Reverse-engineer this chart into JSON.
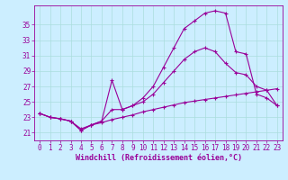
{
  "xlabel": "Windchill (Refroidissement éolien,°C)",
  "bg_color": "#cceeff",
  "line_color": "#990099",
  "grid_color": "#aadddd",
  "yticks": [
    21,
    23,
    25,
    27,
    29,
    31,
    33,
    35
  ],
  "xticks": [
    0,
    1,
    2,
    3,
    4,
    5,
    6,
    7,
    8,
    9,
    10,
    11,
    12,
    13,
    14,
    15,
    16,
    17,
    18,
    19,
    20,
    21,
    22,
    23
  ],
  "ylim": [
    20.0,
    37.5
  ],
  "xlim": [
    -0.5,
    23.5
  ],
  "line1_x": [
    0,
    1,
    2,
    3,
    4,
    5,
    6,
    7,
    8,
    9,
    10,
    11,
    12,
    13,
    14,
    15,
    16,
    17,
    18,
    19,
    20,
    21,
    22,
    23
  ],
  "line1_y": [
    23.5,
    23.0,
    22.8,
    22.5,
    21.5,
    22.0,
    22.3,
    22.7,
    23.0,
    23.3,
    23.7,
    24.0,
    24.3,
    24.6,
    24.9,
    25.1,
    25.3,
    25.5,
    25.7,
    25.9,
    26.1,
    26.3,
    26.5,
    26.7
  ],
  "line2_x": [
    0,
    1,
    2,
    3,
    4,
    5,
    6,
    7,
    8,
    9,
    10,
    11,
    12,
    13,
    14,
    15,
    16,
    17,
    18,
    19,
    20,
    21,
    22,
    23
  ],
  "line2_y": [
    23.5,
    23.0,
    22.8,
    22.5,
    21.3,
    22.0,
    22.5,
    27.8,
    24.0,
    24.5,
    25.5,
    27.0,
    29.5,
    32.0,
    34.5,
    35.5,
    36.5,
    36.8,
    36.5,
    31.5,
    31.2,
    26.0,
    25.5,
    24.5
  ],
  "line3_x": [
    0,
    1,
    2,
    3,
    4,
    5,
    6,
    7,
    8,
    9,
    10,
    11,
    12,
    13,
    14,
    15,
    16,
    17,
    18,
    19,
    20,
    21,
    22,
    23
  ],
  "line3_y": [
    23.5,
    23.0,
    22.8,
    22.5,
    21.3,
    22.0,
    22.5,
    24.0,
    24.0,
    24.5,
    25.0,
    26.0,
    27.5,
    29.0,
    30.5,
    31.5,
    32.0,
    31.5,
    30.0,
    28.8,
    28.5,
    27.0,
    26.5,
    24.5
  ],
  "figsize": [
    3.2,
    2.0
  ],
  "dpi": 100,
  "tick_fontsize": 5.5,
  "label_fontsize": 6.0,
  "marker": "+"
}
